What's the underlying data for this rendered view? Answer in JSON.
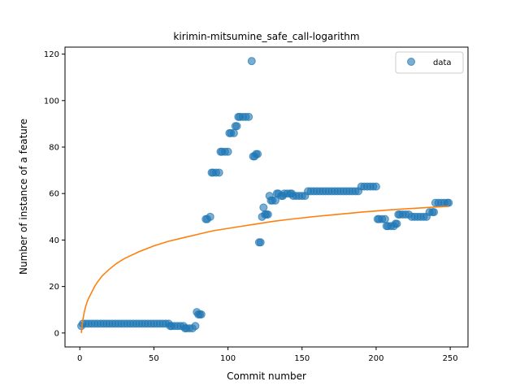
{
  "chart_data": {
    "type": "scatter",
    "title": "kirimin-mitsumine_safe_call-logarithm",
    "xlabel": "Commit number",
    "ylabel": "Number of instance of a feature",
    "xlim": [
      -10,
      262
    ],
    "ylim": [
      -6,
      123
    ],
    "xticks": [
      0,
      50,
      100,
      150,
      200,
      250
    ],
    "yticks": [
      0,
      20,
      40,
      60,
      80,
      100,
      120
    ],
    "grid": false,
    "legend": {
      "position": "top-right",
      "entries": [
        "data"
      ]
    },
    "colors": {
      "data": "#1f77b4",
      "fit": "#ff7f0e"
    },
    "series": [
      {
        "name": "data",
        "kind": "scatter",
        "points": [
          [
            1,
            3
          ],
          [
            2,
            4
          ],
          [
            4,
            4
          ],
          [
            6,
            4
          ],
          [
            8,
            4
          ],
          [
            10,
            4
          ],
          [
            12,
            4
          ],
          [
            14,
            4
          ],
          [
            16,
            4
          ],
          [
            18,
            4
          ],
          [
            20,
            4
          ],
          [
            22,
            4
          ],
          [
            24,
            4
          ],
          [
            26,
            4
          ],
          [
            28,
            4
          ],
          [
            30,
            4
          ],
          [
            32,
            4
          ],
          [
            34,
            4
          ],
          [
            36,
            4
          ],
          [
            38,
            4
          ],
          [
            40,
            4
          ],
          [
            42,
            4
          ],
          [
            44,
            4
          ],
          [
            46,
            4
          ],
          [
            48,
            4
          ],
          [
            50,
            4
          ],
          [
            52,
            4
          ],
          [
            54,
            4
          ],
          [
            56,
            4
          ],
          [
            58,
            4
          ],
          [
            60,
            4
          ],
          [
            61,
            3
          ],
          [
            62,
            3
          ],
          [
            64,
            3
          ],
          [
            66,
            3
          ],
          [
            68,
            3
          ],
          [
            70,
            3
          ],
          [
            71,
            2
          ],
          [
            72,
            2
          ],
          [
            74,
            2
          ],
          [
            76,
            2
          ],
          [
            78,
            3
          ],
          [
            79,
            9
          ],
          [
            80,
            8
          ],
          [
            81,
            8
          ],
          [
            82,
            8
          ],
          [
            85,
            49
          ],
          [
            86,
            49
          ],
          [
            88,
            50
          ],
          [
            89,
            69
          ],
          [
            90,
            69
          ],
          [
            92,
            69
          ],
          [
            94,
            69
          ],
          [
            95,
            78
          ],
          [
            96,
            78
          ],
          [
            98,
            78
          ],
          [
            100,
            78
          ],
          [
            101,
            86
          ],
          [
            102,
            86
          ],
          [
            104,
            86
          ],
          [
            105,
            89
          ],
          [
            106,
            89
          ],
          [
            107,
            93
          ],
          [
            108,
            93
          ],
          [
            110,
            93
          ],
          [
            112,
            93
          ],
          [
            114,
            93
          ],
          [
            116,
            117
          ],
          [
            117,
            76
          ],
          [
            118,
            76
          ],
          [
            119,
            77
          ],
          [
            120,
            77
          ],
          [
            121,
            39
          ],
          [
            122,
            39
          ],
          [
            123,
            50
          ],
          [
            124,
            54
          ],
          [
            125,
            51
          ],
          [
            126,
            51
          ],
          [
            127,
            51
          ],
          [
            128,
            59
          ],
          [
            129,
            57
          ],
          [
            130,
            57
          ],
          [
            132,
            57
          ],
          [
            133,
            60
          ],
          [
            134,
            60
          ],
          [
            136,
            59
          ],
          [
            137,
            59
          ],
          [
            138,
            60
          ],
          [
            140,
            60
          ],
          [
            142,
            60
          ],
          [
            143,
            60
          ],
          [
            144,
            59
          ],
          [
            146,
            59
          ],
          [
            148,
            59
          ],
          [
            150,
            59
          ],
          [
            152,
            59
          ],
          [
            154,
            61
          ],
          [
            156,
            61
          ],
          [
            158,
            61
          ],
          [
            160,
            61
          ],
          [
            162,
            61
          ],
          [
            164,
            61
          ],
          [
            166,
            61
          ],
          [
            168,
            61
          ],
          [
            170,
            61
          ],
          [
            172,
            61
          ],
          [
            174,
            61
          ],
          [
            176,
            61
          ],
          [
            178,
            61
          ],
          [
            180,
            61
          ],
          [
            182,
            61
          ],
          [
            184,
            61
          ],
          [
            186,
            61
          ],
          [
            188,
            61
          ],
          [
            190,
            63
          ],
          [
            192,
            63
          ],
          [
            194,
            63
          ],
          [
            196,
            63
          ],
          [
            198,
            63
          ],
          [
            200,
            63
          ],
          [
            201,
            49
          ],
          [
            202,
            49
          ],
          [
            204,
            49
          ],
          [
            206,
            49
          ],
          [
            207,
            46
          ],
          [
            208,
            46
          ],
          [
            210,
            46
          ],
          [
            212,
            46
          ],
          [
            213,
            47
          ],
          [
            214,
            47
          ],
          [
            215,
            51
          ],
          [
            216,
            51
          ],
          [
            218,
            51
          ],
          [
            220,
            51
          ],
          [
            222,
            51
          ],
          [
            224,
            50
          ],
          [
            226,
            50
          ],
          [
            228,
            50
          ],
          [
            230,
            50
          ],
          [
            232,
            50
          ],
          [
            234,
            50
          ],
          [
            236,
            52
          ],
          [
            238,
            52
          ],
          [
            239,
            52
          ],
          [
            240,
            56
          ],
          [
            242,
            56
          ],
          [
            244,
            56
          ],
          [
            246,
            56
          ],
          [
            248,
            56
          ],
          [
            249,
            56
          ]
        ]
      },
      {
        "name": "",
        "kind": "line",
        "formula": "logarithmic fit",
        "points": [
          [
            1,
            0
          ],
          [
            2,
            5.5
          ],
          [
            3,
            9
          ],
          [
            4,
            11.5
          ],
          [
            5,
            13.5
          ],
          [
            6,
            15
          ],
          [
            8,
            17.5
          ],
          [
            10,
            20
          ],
          [
            12,
            22
          ],
          [
            15,
            24.5
          ],
          [
            20,
            27.5
          ],
          [
            25,
            30
          ],
          [
            30,
            32
          ],
          [
            40,
            35
          ],
          [
            50,
            37.5
          ],
          [
            60,
            39.5
          ],
          [
            70,
            41
          ],
          [
            80,
            42.5
          ],
          [
            90,
            44
          ],
          [
            100,
            45
          ],
          [
            110,
            46
          ],
          [
            120,
            47
          ],
          [
            130,
            48
          ],
          [
            140,
            48.8
          ],
          [
            150,
            49.5
          ],
          [
            160,
            50.2
          ],
          [
            170,
            50.8
          ],
          [
            180,
            51.4
          ],
          [
            190,
            52
          ],
          [
            200,
            52.5
          ],
          [
            210,
            53
          ],
          [
            220,
            53.4
          ],
          [
            230,
            53.8
          ],
          [
            240,
            54.2
          ],
          [
            249,
            54.5
          ]
        ]
      }
    ]
  }
}
